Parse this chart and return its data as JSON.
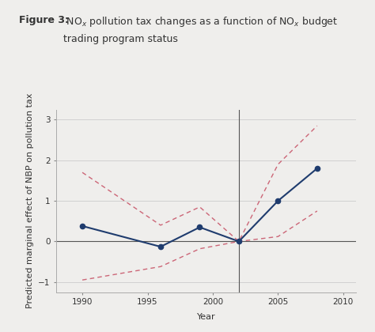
{
  "title_line1_bold": "Figure 3:",
  "title_line1_normal": " NOₓ pollution tax changes as a function of NOₓ budget",
  "title_line2": "      trading program status",
  "xlabel": "Year",
  "ylabel": "Predicted marginal effect of NBP on pollution tax",
  "bg_color": "#efeeec",
  "main_line_x": [
    1990,
    1996,
    1999,
    2002,
    2005,
    2008
  ],
  "main_line_y": [
    0.38,
    -0.13,
    0.35,
    0.0,
    1.0,
    1.8
  ],
  "ci_upper_x": [
    1990,
    1996,
    1999,
    2002,
    2005,
    2008
  ],
  "ci_upper_y": [
    1.7,
    0.4,
    0.85,
    0.0,
    1.9,
    2.85
  ],
  "ci_lower_x": [
    1990,
    1996,
    1999,
    2002,
    2005,
    2008
  ],
  "ci_lower_y": [
    -0.95,
    -0.62,
    -0.18,
    0.0,
    0.12,
    0.75
  ],
  "vline_x": 2002,
  "hline_y": 0,
  "xlim": [
    1988,
    2011
  ],
  "ylim": [
    -1.25,
    3.25
  ],
  "yticks": [
    -1,
    0,
    1,
    2,
    3
  ],
  "xticks": [
    1990,
    1995,
    2000,
    2005,
    2010
  ],
  "main_line_color": "#1f3c6e",
  "ci_color": "#cc6677",
  "vline_color": "#555555",
  "hline_color": "#555555",
  "grid_color": "#cccccc",
  "text_color": "#333333",
  "title_fontsize": 9.0,
  "label_fontsize": 8.0,
  "tick_fontsize": 7.5
}
